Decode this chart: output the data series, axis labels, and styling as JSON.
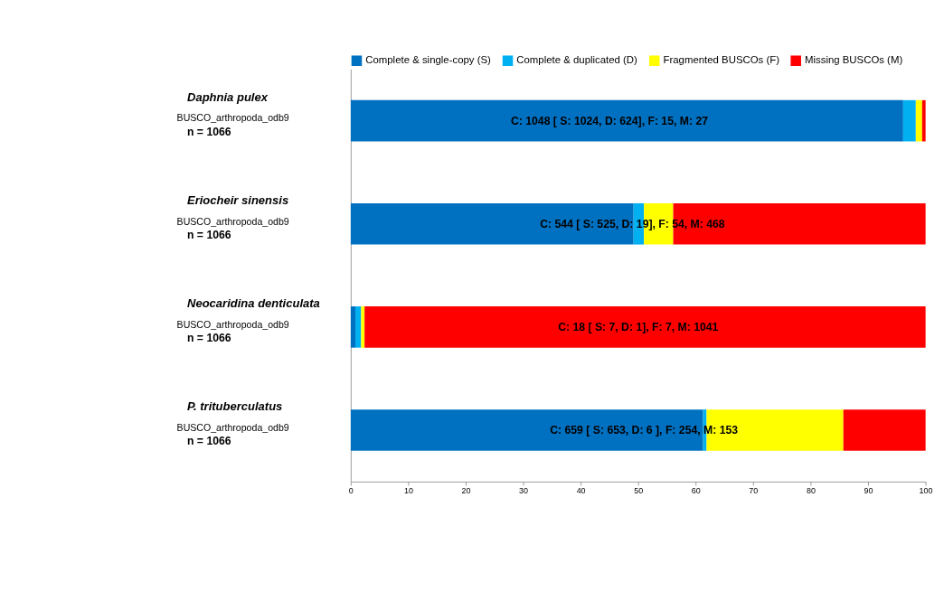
{
  "chart_data": {
    "type": "bar",
    "orientation": "horizontal",
    "stacked": true,
    "categories": [
      "Daphnia pulex",
      "Eriocheir sinensis",
      "Neocaridina denticulata",
      "P. trituberculatus"
    ],
    "series": [
      {
        "name": "Complete & single-copy (S)",
        "color": "#0070c0",
        "values": [
          96.1,
          49.2,
          0.8,
          61.3
        ]
      },
      {
        "name": "Complete & duplicated (D)",
        "color": "#00b0f0",
        "values": [
          2.2,
          1.8,
          1.0,
          0.6
        ]
      },
      {
        "name": "Fragmented BUSCOs (F)",
        "color": "#ffff00",
        "values": [
          1.1,
          5.1,
          0.6,
          23.8
        ]
      },
      {
        "name": "Missing BUSCOs (M)",
        "color": "#ff0000",
        "values": [
          0.6,
          43.9,
          97.6,
          14.3
        ]
      }
    ],
    "annotations": [
      {
        "text": "C: 1048 [ S: 1024, D: 624], F: 15, M: 27",
        "x": 45,
        "y": "Daphnia pulex"
      },
      {
        "text": "C: 544 [ S: 525, D: 19], F: 54, M:  468",
        "x": 49,
        "y": "Eriocheir sinensis"
      },
      {
        "text": "C: 18 [ S: 7, D: 1], F: 7, M: 1041",
        "x": 50,
        "y": "Neocaridina denticulata"
      },
      {
        "text": "C: 659  [ S: 653, D: 6 ], F: 254, M: 153",
        "x": 51,
        "y": "P. trituberculatus"
      },
      "BUSCO_arthropoda_odb9",
      "n = 1066",
      "BUSCO_arthropoda_odb9",
      "n = 1066",
      "BUSCO_arthropoda_odb9",
      "n = 1066",
      "BUSCO_arthropoda_odb9",
      "n = 1066"
    ],
    "xlim": [
      0,
      100
    ],
    "xticks": [
      0,
      10,
      20,
      30,
      40,
      50,
      60,
      70,
      80,
      90,
      100
    ],
    "grid": false,
    "legend": "top"
  }
}
